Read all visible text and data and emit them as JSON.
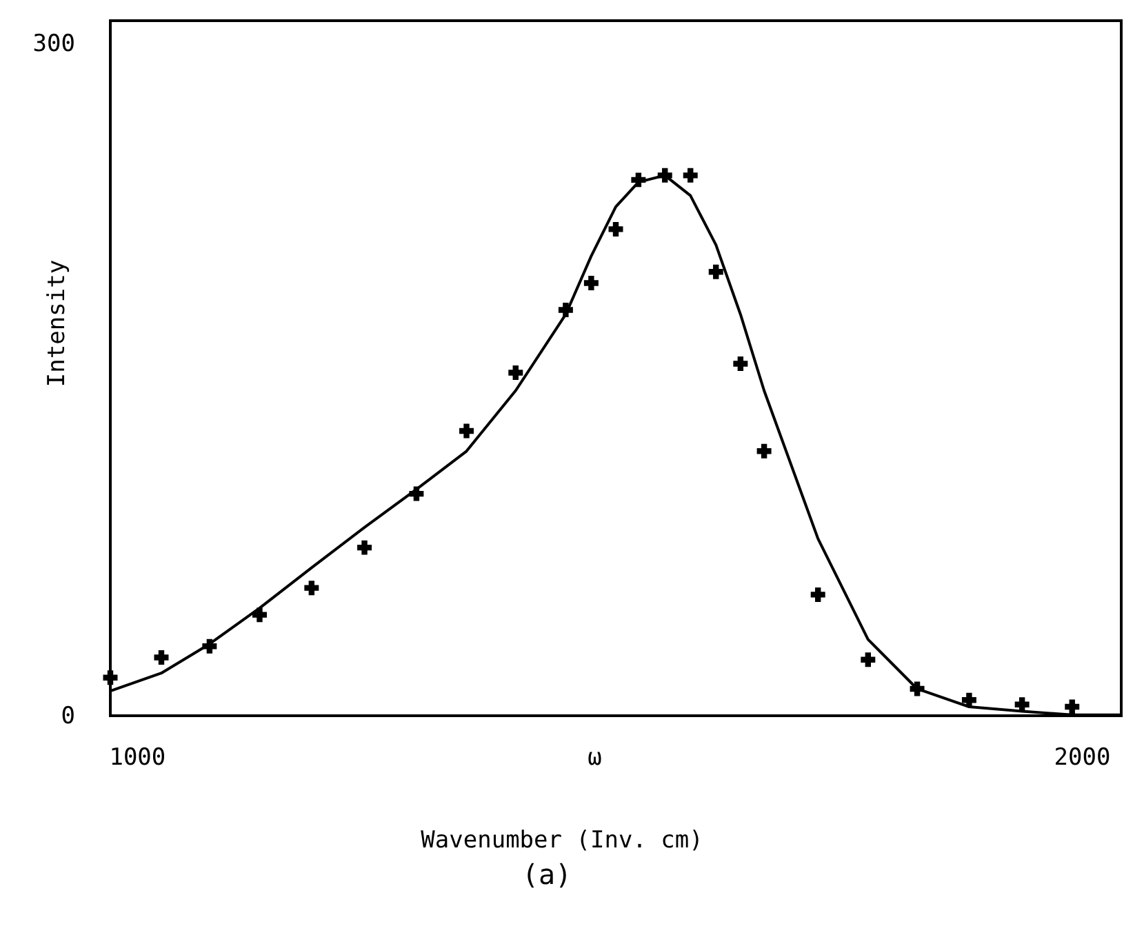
{
  "chart_data": {
    "type": "scatter",
    "xlabel": "Wavenumber (Inv. cm)",
    "ylabel": "Intensity",
    "annotations": [
      "(a)"
    ],
    "xlim": [
      972,
      2042
    ],
    "xticks": [
      1000,
      {
        "value": 1484,
        "label": "ω"
      },
      2000
    ],
    "ylim": [
      0,
      310
    ],
    "yticks": [
      0,
      300
    ],
    "grid": false,
    "series": [
      {
        "marker": "cross",
        "color": "#000000",
        "x": [
          972,
          1026,
          1077,
          1130,
          1185,
          1241,
          1296,
          1349,
          1401,
          1454,
          1481,
          1507,
          1531,
          1559,
          1586,
          1613,
          1639,
          1664,
          1721,
          1774,
          1826,
          1881,
          1937,
          1990
        ],
        "values": [
          17,
          26,
          31,
          45,
          57,
          75,
          99,
          127,
          153,
          181,
          193,
          217,
          239,
          241,
          241,
          198,
          157,
          118,
          54,
          25,
          12,
          7,
          5,
          4
        ]
      },
      {
        "type": "line",
        "marker": "none",
        "line_style": "solid",
        "color": "#000000",
        "x": [
          972,
          1026,
          1077,
          1130,
          1185,
          1241,
          1296,
          1349,
          1401,
          1454,
          1481,
          1507,
          1531,
          1559,
          1586,
          1613,
          1639,
          1664,
          1721,
          1774,
          1826,
          1881,
          1937,
          1990,
          2042
        ],
        "values": [
          11,
          19,
          32,
          48,
          66,
          84,
          101,
          118,
          145,
          179,
          205,
          227,
          238,
          241,
          232,
          210,
          179,
          145,
          79,
          34,
          12,
          4,
          2,
          0.4,
          0.4
        ]
      }
    ]
  }
}
